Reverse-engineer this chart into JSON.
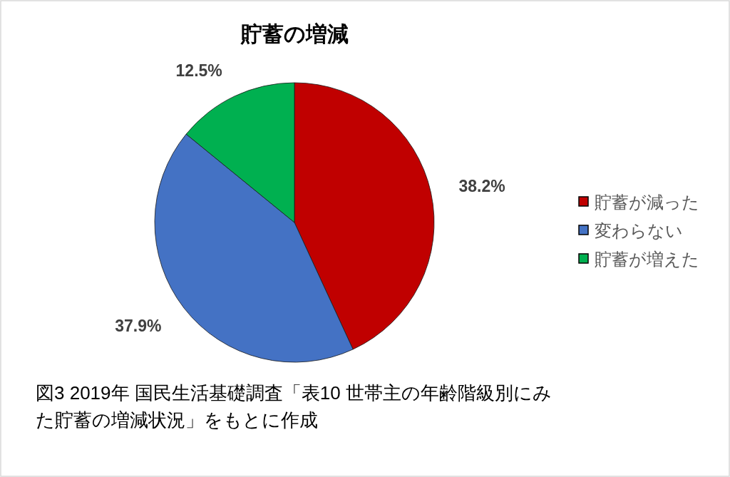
{
  "chart_data": {
    "type": "pie",
    "title": "貯蓄の増減",
    "categories": [
      "貯蓄が減った",
      "変わらない",
      "貯蓄が増えた"
    ],
    "values": [
      38.2,
      37.9,
      12.5
    ],
    "colors": [
      "#c00000",
      "#4472c4",
      "#00b050"
    ],
    "value_labels": [
      "38.2%",
      "37.9%",
      "12.5%"
    ],
    "legend": "right",
    "annotations": [
      "図3 2019年 国民生活基礎調査「表10 世帯主の年齢階級別にみた貯蓄の増減状況」をもとに作成"
    ]
  }
}
